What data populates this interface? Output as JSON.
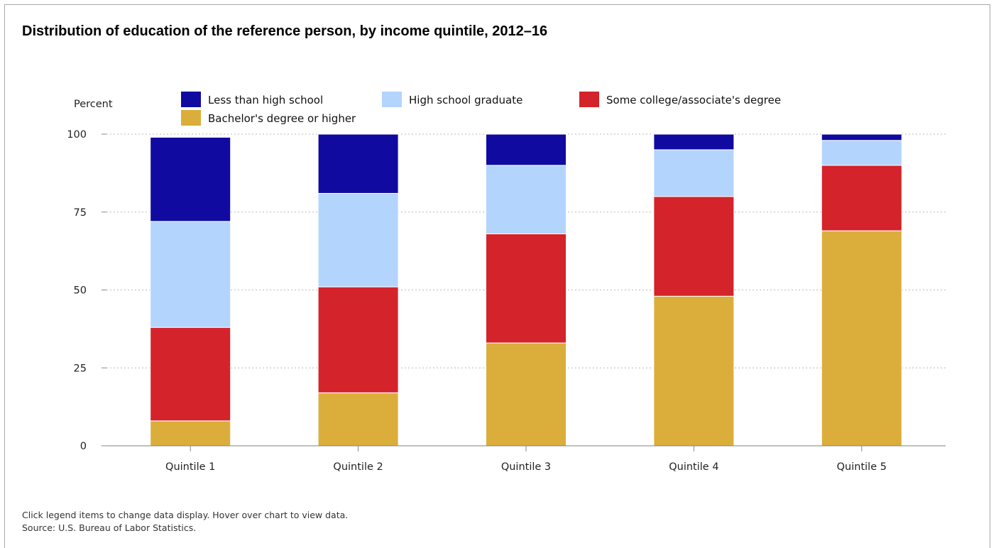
{
  "notes": {
    "interaction": "Click legend items to change data display. Hover over chart to view data.",
    "source": "Source: U.S. Bureau of Labor Statistics."
  },
  "chart_data": {
    "type": "bar",
    "stacked": true,
    "title": "Distribution of education of the reference person, by income quintile, 2012–16",
    "ylabel": "Percent",
    "xlabel": "",
    "categories": [
      "Quintile 1",
      "Quintile 2",
      "Quintile 3",
      "Quintile 4",
      "Quintile 5"
    ],
    "ylim": [
      0,
      100
    ],
    "yticks": [
      0,
      25,
      50,
      75,
      100
    ],
    "grid": "horizontal dotted",
    "legend_position": "top",
    "series": [
      {
        "name": "Bachelor's degree or higher",
        "color": "#dbae3b",
        "values": [
          8,
          17,
          33,
          48,
          69
        ]
      },
      {
        "name": "Some college/associate's degree",
        "color": "#d4232a",
        "values": [
          30,
          34,
          35,
          32,
          21
        ]
      },
      {
        "name": "High school graduate",
        "color": "#b3d4fc",
        "values": [
          34,
          30,
          22,
          15,
          8
        ]
      },
      {
        "name": "Less than high school",
        "color": "#100aa0",
        "values": [
          27,
          19,
          10,
          5,
          2
        ]
      }
    ],
    "legend_order": [
      "Less than high school",
      "High school graduate",
      "Some college/associate's degree",
      "Bachelor's degree or higher"
    ]
  }
}
